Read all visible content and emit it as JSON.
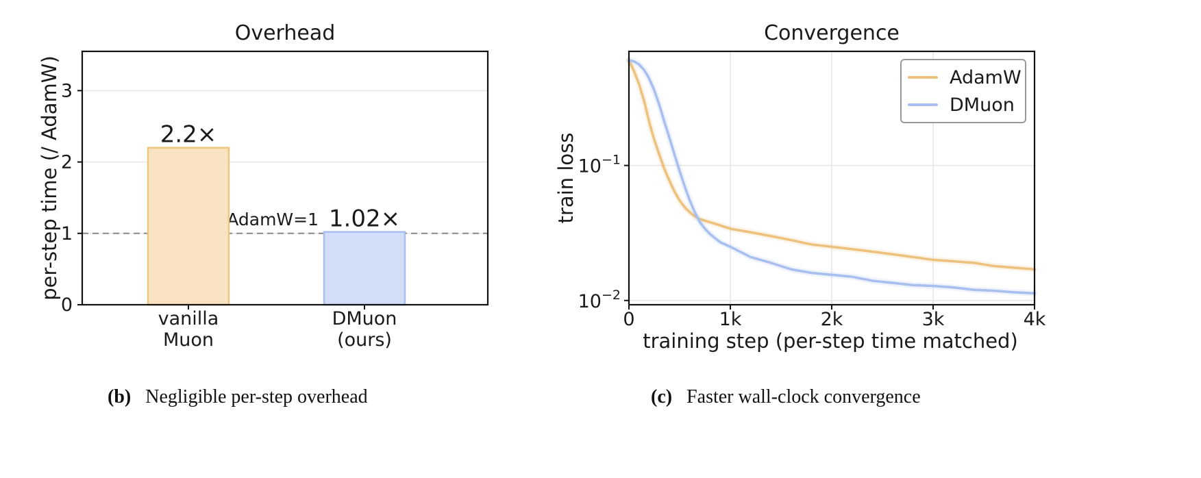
{
  "colors": {
    "adamw": "#EDC27E",
    "dmuon": "#A8BFEF",
    "bar_vanilla_fill": "#F8E2C2",
    "bar_vanilla_edge": "#EEC77E",
    "bar_dmuon_fill": "#D3DEF8",
    "bar_dmuon_edge": "#A8BFEF",
    "ref_line": "#888888"
  },
  "chart_data": [
    {
      "type": "bar",
      "title": "Overhead",
      "ylabel": "per-step time  (/ AdamW)",
      "categories": [
        [
          "vanilla",
          "Muon"
        ],
        [
          "DMuon",
          "(ours)"
        ]
      ],
      "values": [
        2.2,
        1.02
      ],
      "value_labels": [
        "2.2×",
        "1.02×"
      ],
      "ylim": [
        0,
        3.55
      ],
      "yticks": [
        0,
        1,
        2,
        3
      ],
      "reference_line": {
        "value": 1,
        "label": "AdamW=1",
        "style": "dashed"
      },
      "grid": "horizontal",
      "caption": {
        "letter": "(b)",
        "text": "Negligible per-step overhead"
      }
    },
    {
      "type": "line",
      "title": "Convergence",
      "xlabel": "training step  (per-step time matched)",
      "ylabel": "train loss",
      "xlim": [
        0,
        4000
      ],
      "xticks": [
        0,
        1000,
        2000,
        3000,
        4000
      ],
      "xtick_labels": [
        "0",
        "1k",
        "2k",
        "3k",
        "4k"
      ],
      "yscale": "log",
      "ylim": [
        0.0093,
        0.7
      ],
      "yticks": [
        0.1,
        0.01
      ],
      "ytick_labels": [
        [
          "10",
          "−1"
        ],
        [
          "10",
          "−2"
        ]
      ],
      "grid": true,
      "legend": "top-right",
      "series": [
        {
          "name": "AdamW",
          "x": [
            0,
            50,
            100,
            150,
            200,
            250,
            300,
            350,
            400,
            450,
            500,
            550,
            600,
            650,
            700,
            800,
            900,
            1000,
            1200,
            1400,
            1600,
            1800,
            2000,
            2200,
            2400,
            2600,
            2800,
            3000,
            3200,
            3400,
            3600,
            3800,
            4000
          ],
          "y": [
            0.6,
            0.5,
            0.4,
            0.3,
            0.21,
            0.155,
            0.12,
            0.094,
            0.077,
            0.064,
            0.055,
            0.049,
            0.045,
            0.042,
            0.04,
            0.038,
            0.036,
            0.034,
            0.032,
            0.03,
            0.028,
            0.026,
            0.025,
            0.024,
            0.023,
            0.022,
            0.021,
            0.02,
            0.0195,
            0.019,
            0.018,
            0.0175,
            0.017
          ]
        },
        {
          "name": "DMuon",
          "x": [
            0,
            50,
            100,
            150,
            200,
            250,
            300,
            350,
            400,
            450,
            500,
            550,
            600,
            650,
            700,
            750,
            800,
            900,
            1000,
            1200,
            1400,
            1600,
            1800,
            2000,
            2200,
            2400,
            2600,
            2800,
            3000,
            3200,
            3400,
            3600,
            3800,
            4000
          ],
          "y": [
            0.6,
            0.59,
            0.56,
            0.51,
            0.44,
            0.36,
            0.28,
            0.21,
            0.16,
            0.12,
            0.091,
            0.07,
            0.055,
            0.045,
            0.038,
            0.034,
            0.031,
            0.027,
            0.025,
            0.021,
            0.019,
            0.017,
            0.016,
            0.0155,
            0.015,
            0.014,
            0.0135,
            0.013,
            0.0128,
            0.0125,
            0.012,
            0.0118,
            0.0115,
            0.0113
          ]
        }
      ],
      "caption": {
        "letter": "(c)",
        "text": "Faster wall-clock convergence"
      }
    }
  ]
}
